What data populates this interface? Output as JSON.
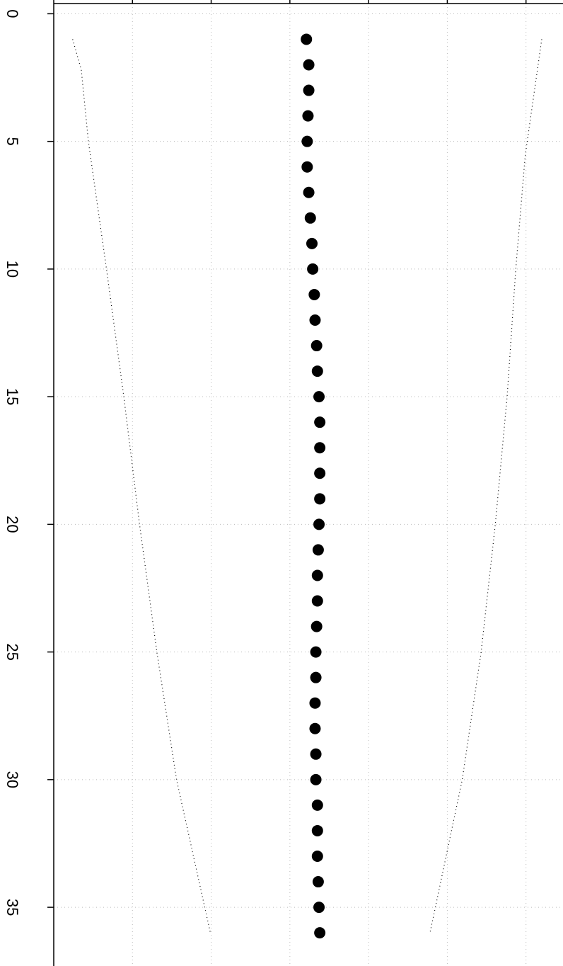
{
  "chart_data": {
    "type": "scatter",
    "xlim": [
      0,
      6.47
    ],
    "xticks": [
      1,
      2,
      3,
      4,
      5,
      6
    ],
    "ylim": [
      -0.4,
      37.3
    ],
    "yticks": [
      0,
      5,
      10,
      15,
      20,
      25,
      30,
      35
    ],
    "grid": true,
    "color": "#000000",
    "series": [
      {
        "color": "#000000",
        "y": [
          1,
          2,
          3,
          4,
          5,
          6,
          7,
          8,
          9,
          10,
          11,
          12,
          13,
          14,
          15,
          16,
          17,
          18,
          19,
          20,
          21,
          22,
          23,
          24,
          25,
          26,
          27,
          28,
          29,
          30,
          31,
          32,
          33,
          34,
          35,
          36
        ],
        "x": [
          3.21,
          3.24,
          3.24,
          3.23,
          3.22,
          3.22,
          3.24,
          3.26,
          3.28,
          3.29,
          3.31,
          3.32,
          3.34,
          3.35,
          3.37,
          3.38,
          3.38,
          3.38,
          3.38,
          3.37,
          3.36,
          3.35,
          3.35,
          3.34,
          3.33,
          3.33,
          3.32,
          3.32,
          3.33,
          3.33,
          3.35,
          3.35,
          3.35,
          3.36,
          3.37,
          3.38
        ]
      }
    ],
    "lines": [
      {
        "color": "#000000",
        "x": [
          0.24,
          0.35,
          0.44,
          0.67,
          0.89,
          1.09,
          1.31,
          1.56,
          1.99
        ],
        "y": [
          1,
          2.2,
          5,
          10,
          15,
          20,
          25,
          30,
          36
        ]
      },
      {
        "color": "#000000",
        "x": [
          6.2,
          5.99,
          5.87,
          5.76,
          5.61,
          5.43,
          5.19,
          4.78
        ],
        "y": [
          1,
          5.55,
          10,
          15,
          20,
          25,
          30,
          36
        ]
      }
    ]
  }
}
